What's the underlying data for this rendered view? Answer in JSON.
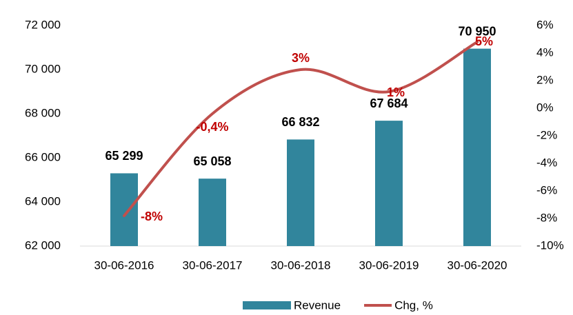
{
  "chart_data": {
    "type": "bar",
    "categories": [
      "30-06-2016",
      "30-06-2017",
      "30-06-2018",
      "30-06-2019",
      "30-06-2020"
    ],
    "series": [
      {
        "name": "Revenue",
        "type": "bar",
        "color": "#31859c",
        "values": [
          65299,
          65058,
          66832,
          67684,
          70950
        ],
        "value_labels": [
          "65 299",
          "65 058",
          "66 832",
          "67 684",
          "70 950"
        ]
      },
      {
        "name": "Chg, %",
        "type": "line",
        "axis": "y2",
        "color": "#c0504d",
        "label_color": "#c00000",
        "values": [
          -7.8,
          -0.4,
          2.8,
          1.2,
          4.8
        ],
        "value_labels": [
          "-8%",
          "-0,4%",
          "3%",
          "1%",
          "5%"
        ]
      }
    ],
    "ylim": [
      62000,
      72000
    ],
    "yticks": [
      {
        "value": 62000,
        "label": "62 000"
      },
      {
        "value": 64000,
        "label": "64 000"
      },
      {
        "value": 66000,
        "label": "66 000"
      },
      {
        "value": 68000,
        "label": "68 000"
      },
      {
        "value": 70000,
        "label": "70 000"
      },
      {
        "value": 72000,
        "label": "72 000"
      }
    ],
    "y2lim": [
      -10,
      6
    ],
    "y2ticks": [
      {
        "value": -10,
        "label": "-10%"
      },
      {
        "value": -8,
        "label": "-8%"
      },
      {
        "value": -6,
        "label": "-6%"
      },
      {
        "value": -4,
        "label": "-4%"
      },
      {
        "value": -2,
        "label": "-2%"
      },
      {
        "value": 0,
        "label": "0%"
      },
      {
        "value": 2,
        "label": "2%"
      },
      {
        "value": 4,
        "label": "4%"
      },
      {
        "value": 6,
        "label": "6%"
      }
    ],
    "grid": false,
    "legend": "bottom"
  }
}
